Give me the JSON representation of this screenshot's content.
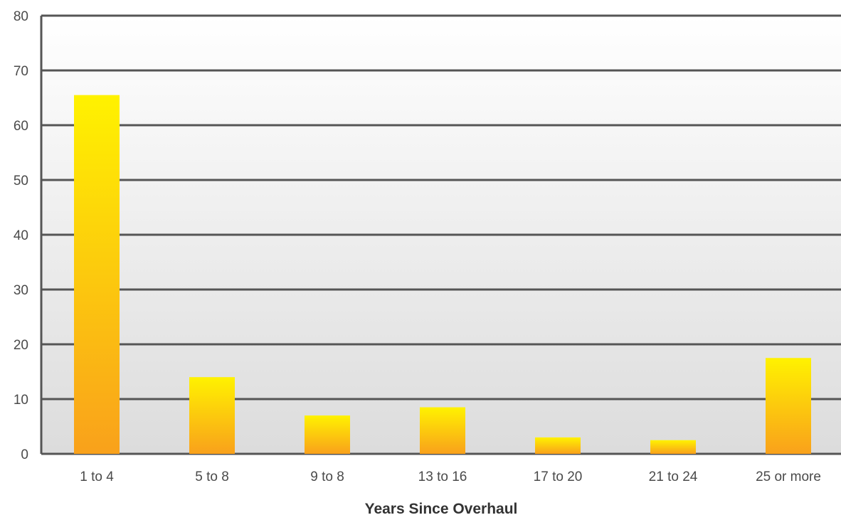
{
  "chart_data": {
    "type": "bar",
    "categories": [
      "1 to 4",
      "5 to 8",
      "9 to 8",
      "13 to 16",
      "17 to 20",
      "21 to 24",
      "25 or more"
    ],
    "values": [
      65.5,
      14,
      7,
      8.5,
      3,
      2.5,
      17.5
    ],
    "xlabel": "Years Since Overhaul",
    "ylabel": "",
    "ylim": [
      0,
      80
    ],
    "yticks": [
      0,
      10,
      20,
      30,
      40,
      50,
      60,
      70,
      80
    ],
    "grid": true,
    "legend": "none"
  },
  "colors": {
    "bar_top": "#fff200",
    "bar_bottom": "#f9a11b",
    "grid": "#555555",
    "plot_bg_top": "#ffffff",
    "plot_bg_bottom": "#dcdcdc"
  }
}
